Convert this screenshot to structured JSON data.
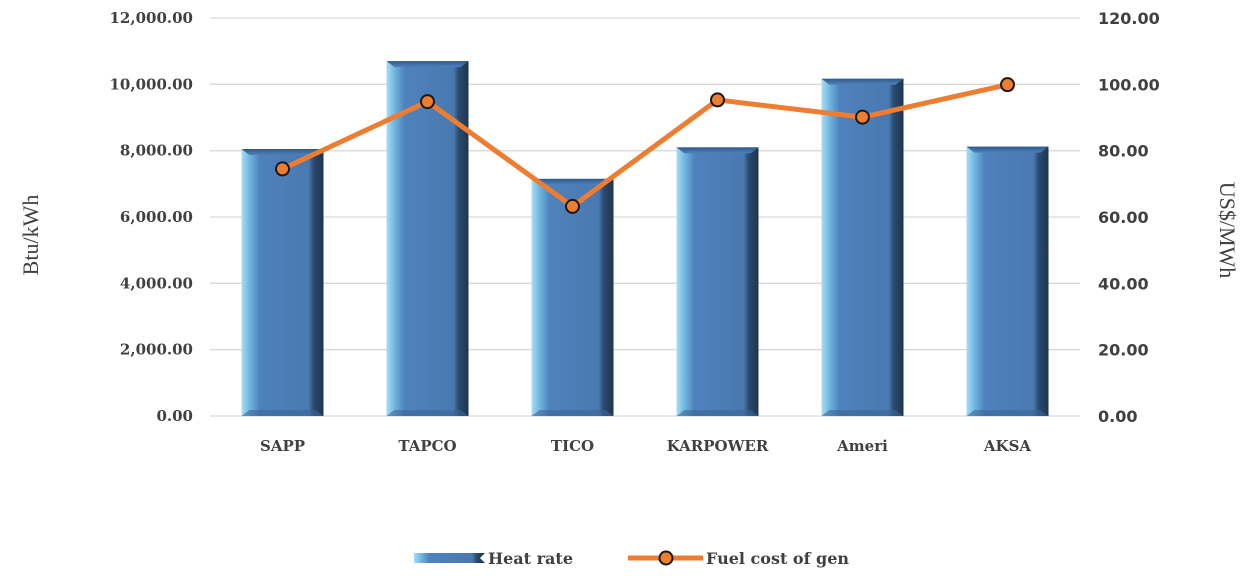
{
  "chart_data": {
    "type": "bar",
    "categories": [
      "SAPP",
      "TAPCO",
      "TICO",
      "KARPOWER",
      "Ameri",
      "AKSA"
    ],
    "series": [
      {
        "name": "Heat rate",
        "type": "bar",
        "axis": "left",
        "values": [
          8050,
          10700,
          7150,
          8100,
          10170,
          8120
        ],
        "color": "#4f81bd"
      },
      {
        "name": "Fuel cost of gen",
        "type": "line",
        "axis": "right",
        "values": [
          74.5,
          94.8,
          63.2,
          95.3,
          90.1,
          99.9
        ],
        "color": "#ed7d31"
      }
    ],
    "ylabel": "Btu/kWh",
    "y2label": "US$/MWh",
    "ylim": [
      0,
      12000
    ],
    "y2lim": [
      0,
      120
    ],
    "yticks": [
      "0.00",
      "2,000.00",
      "4,000.00",
      "6,000.00",
      "8,000.00",
      "10,000.00",
      "12,000.00"
    ],
    "y2ticks": [
      "0.00",
      "20.00",
      "40.00",
      "60.00",
      "80.00",
      "100.00",
      "120.00"
    ],
    "grid": true,
    "legend_position": "bottom"
  }
}
